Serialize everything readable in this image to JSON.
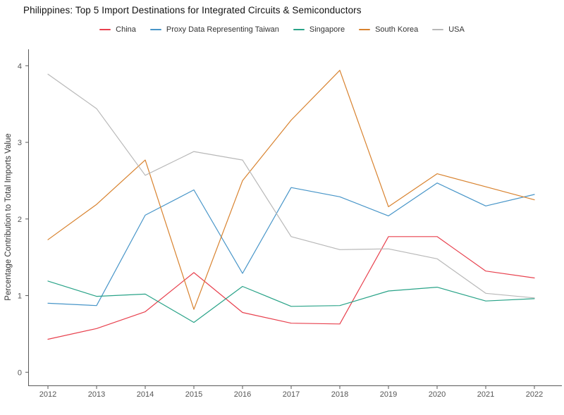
{
  "title": "Philippines: Top 5 Import Destinations for Integrated Circuits & Semiconductors",
  "chart_data": {
    "type": "line",
    "title": "Philippines: Top 5 Import Destinations for Integrated Circuits & Semiconductors",
    "xlabel": "",
    "ylabel": "Percentage Contribution to Total Imports Value",
    "x": [
      2012,
      2013,
      2014,
      2015,
      2016,
      2017,
      2018,
      2019,
      2020,
      2021,
      2022
    ],
    "ylim": [
      0,
      4
    ],
    "yticks": [
      0,
      1,
      2,
      3,
      4
    ],
    "grid": false,
    "legend_position": "top-center",
    "axis_color": "#595959",
    "tick_label_color": "#555555",
    "series": [
      {
        "name": "China",
        "color": "#e8414e",
        "values": [
          0.43,
          0.57,
          0.79,
          1.3,
          0.78,
          0.64,
          0.63,
          1.77,
          1.77,
          1.32,
          1.23
        ]
      },
      {
        "name": "Proxy Data Representing Taiwan",
        "color": "#4795c8",
        "values": [
          0.9,
          0.87,
          2.05,
          2.38,
          1.29,
          2.41,
          2.29,
          2.04,
          2.47,
          2.17,
          2.32
        ]
      },
      {
        "name": "Singapore",
        "color": "#29a388",
        "values": [
          1.19,
          0.99,
          1.02,
          0.65,
          1.12,
          0.86,
          0.87,
          1.06,
          1.11,
          0.93,
          0.96
        ]
      },
      {
        "name": "South Korea",
        "color": "#d8822e",
        "values": [
          1.73,
          2.19,
          2.77,
          0.82,
          2.5,
          3.29,
          3.94,
          2.16,
          2.59,
          2.42,
          2.25
        ]
      },
      {
        "name": "USA",
        "color": "#b8b8b8",
        "values": [
          3.89,
          3.44,
          2.57,
          2.88,
          2.77,
          1.77,
          1.6,
          1.61,
          1.48,
          1.03,
          0.97
        ]
      }
    ]
  }
}
